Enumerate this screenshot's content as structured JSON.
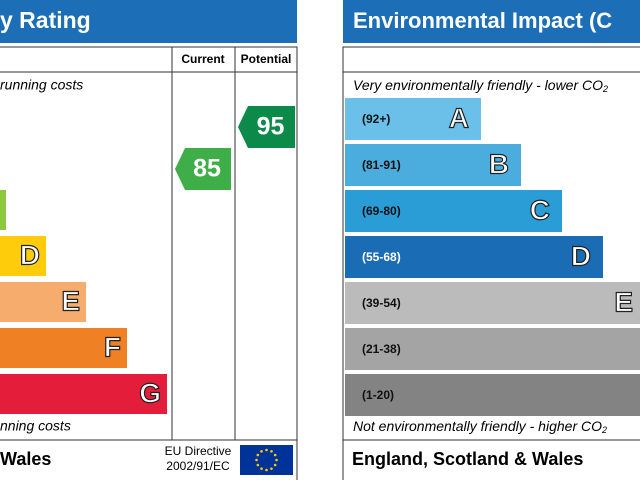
{
  "left": {
    "title": "y Rating",
    "col_current": "Current",
    "col_potential": "Potential",
    "top_note": "running costs",
    "bottom_note": "nning costs",
    "bands": [
      {
        "letter": "D",
        "color": "#fecc0a"
      },
      {
        "letter": "E",
        "color": "#f6ac6d"
      },
      {
        "letter": "F",
        "color": "#ef8023"
      },
      {
        "letter": "G",
        "color": "#e31d3a"
      }
    ],
    "current": "85",
    "potential": "95",
    "footer": "Wales",
    "eu_line1": "EU Directive",
    "eu_line2": "2002/91/EC"
  },
  "right": {
    "title": "Environmental Impact (C",
    "top_note": {
      "text": "Very environmentally friendly - lower CO",
      "sub": "2"
    },
    "bottom_note": {
      "text": "Not environmentally friendly - higher CO",
      "sub": "2"
    },
    "bands": [
      {
        "range": "(92+)",
        "letter": "A",
        "color": "#6bc0ea"
      },
      {
        "range": "(81-91)",
        "letter": "B",
        "color": "#4badde"
      },
      {
        "range": "(69-80)",
        "letter": "C",
        "color": "#2b9dd6"
      },
      {
        "range": "(55-68)",
        "letter": "D",
        "color": "#1a6cb4"
      },
      {
        "range": "(39-54)",
        "letter": "E",
        "color": "#bbbbbb"
      },
      {
        "range": "(21-38)",
        "color": "#a4a4a4"
      },
      {
        "range": "(1-20)",
        "color": "#838383"
      }
    ],
    "footer": "England, Scotland & Wales"
  }
}
